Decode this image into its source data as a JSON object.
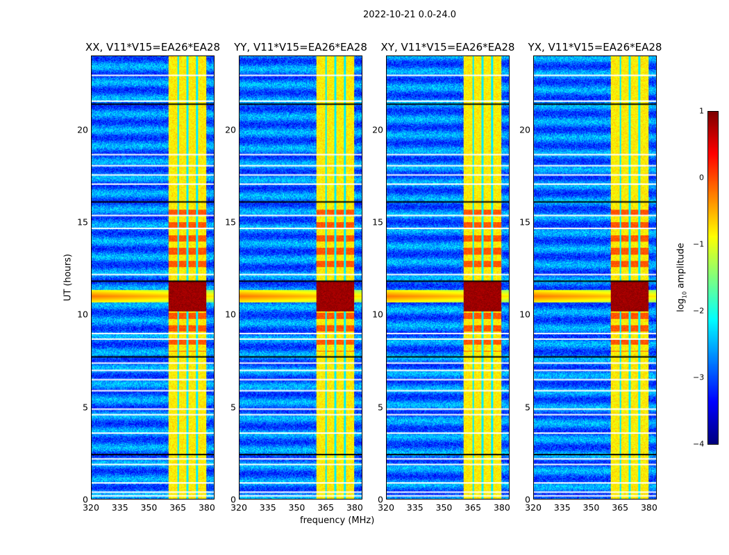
{
  "chart_data": {
    "type": "heatmap",
    "suptitle": "2022-10-21 0.0-24.0",
    "panels": [
      {
        "title": "XX, V11*V15=EA26*EA28"
      },
      {
        "title": "YY, V11*V15=EA26*EA28"
      },
      {
        "title": "XY, V11*V15=EA26*EA28"
      },
      {
        "title": "YX, V11*V15=EA26*EA28"
      }
    ],
    "xlabel": "frequency (MHz)",
    "ylabel": "UT (hours)",
    "xlim": [
      320,
      384
    ],
    "ylim": [
      0,
      24
    ],
    "xticks": [
      "320",
      "335",
      "350",
      "365",
      "380"
    ],
    "xtick_values": [
      320,
      335,
      350,
      365,
      380
    ],
    "yticks": [
      "0",
      "5",
      "10",
      "15",
      "20"
    ],
    "ytick_values": [
      0,
      5,
      10,
      15,
      20
    ],
    "colorbar": {
      "label_main": "log",
      "label_sub": "10",
      "label_rest": " amplitude",
      "range": [
        -4,
        1
      ],
      "ticks": [
        "1",
        "0",
        "−1",
        "−2",
        "−3",
        "−4"
      ],
      "tick_values": [
        1,
        0,
        -1,
        -2,
        -3,
        -4
      ],
      "colormap": "jet"
    },
    "background_level": -2.8,
    "rfi_band_mhz": [
      360,
      380
    ],
    "rfi_band_level": -0.8,
    "rfi_subband_gaps_mhz": [
      365,
      370,
      375
    ],
    "strong_rfi_hours": [
      10.2,
      11.8
    ],
    "strong_rfi_level": 1.0,
    "moderate_rfi_hours": [
      [
        12.5,
        16.0
      ],
      [
        8.0,
        10.2
      ]
    ],
    "moderate_rfi_level": -0.2,
    "black_line_hours": [
      2.4,
      7.7,
      11.8,
      16.1,
      21.4
    ],
    "flagged_row_hours": [
      0.2,
      0.4,
      0.9,
      1.9,
      2.2,
      3.6,
      4.6,
      4.9,
      5.9,
      6.5,
      7.0,
      7.4,
      8.7,
      9.0,
      12.2,
      14.7,
      15.4,
      17.1,
      17.6,
      18.1,
      18.7,
      21.6,
      23.0
    ]
  }
}
